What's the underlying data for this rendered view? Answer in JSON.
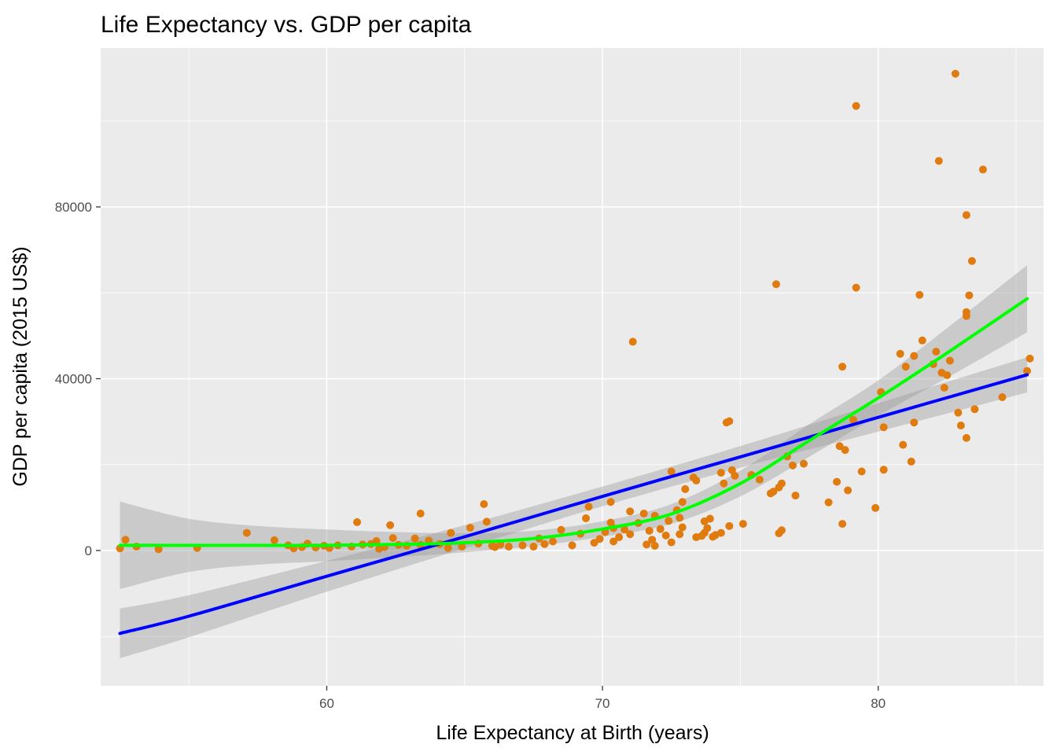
{
  "chart_data": {
    "type": "scatter",
    "title": "Life Expectancy vs. GDP per capita",
    "xlabel": "Life Expectancy at Birth (years)",
    "ylabel": "GDP per capita (2015 US$)",
    "xlim": [
      51.8,
      86.0
    ],
    "ylim": [
      -31500,
      117000
    ],
    "x_ticks": [
      60,
      70,
      80
    ],
    "y_ticks": [
      0,
      40000,
      80000
    ],
    "x_minor": [
      55,
      65,
      75,
      85
    ],
    "y_minor": [
      -20000,
      20000,
      60000,
      100000
    ],
    "grid": true,
    "legend": "none",
    "colors": {
      "panel": "#ebebeb",
      "grid": "#ffffff",
      "points": "#e07b10",
      "ribbon": "#999999",
      "linear_fit": "#0000ff",
      "smooth_fit": "#00ff00"
    },
    "series": [
      {
        "type": "points",
        "points": [
          [
            52.5,
            500
          ],
          [
            52.7,
            2500
          ],
          [
            53.1,
            900
          ],
          [
            53.9,
            300
          ],
          [
            55.3,
            600
          ],
          [
            57.1,
            4100
          ],
          [
            58.1,
            2400
          ],
          [
            58.6,
            1200
          ],
          [
            58.8,
            500
          ],
          [
            59.1,
            800
          ],
          [
            59.3,
            1600
          ],
          [
            59.6,
            700
          ],
          [
            59.9,
            1100
          ],
          [
            60.1,
            600
          ],
          [
            60.4,
            1200
          ],
          [
            60.9,
            900
          ],
          [
            61.3,
            1400
          ],
          [
            61.1,
            6600
          ],
          [
            61.6,
            1500
          ],
          [
            61.8,
            2200
          ],
          [
            61.9,
            400
          ],
          [
            62.1,
            800
          ],
          [
            62.3,
            5900
          ],
          [
            62.4,
            2900
          ],
          [
            62.6,
            1300
          ],
          [
            62.9,
            1100
          ],
          [
            63.2,
            2800
          ],
          [
            63.4,
            8600
          ],
          [
            63.4,
            1300
          ],
          [
            63.7,
            2300
          ],
          [
            64.1,
            1500
          ],
          [
            64.4,
            600
          ],
          [
            64.5,
            4100
          ],
          [
            64.9,
            900
          ],
          [
            65.2,
            5300
          ],
          [
            65.5,
            1600
          ],
          [
            65.7,
            10800
          ],
          [
            65.8,
            6700
          ],
          [
            66.0,
            1100
          ],
          [
            66.1,
            800
          ],
          [
            66.3,
            1400
          ],
          [
            66.6,
            900
          ],
          [
            67.1,
            1200
          ],
          [
            67.5,
            900
          ],
          [
            67.7,
            2800
          ],
          [
            67.9,
            1500
          ],
          [
            68.2,
            2100
          ],
          [
            68.5,
            4800
          ],
          [
            68.9,
            1200
          ],
          [
            69.2,
            3900
          ],
          [
            69.4,
            7500
          ],
          [
            69.5,
            10200
          ],
          [
            69.7,
            1800
          ],
          [
            69.9,
            2700
          ],
          [
            70.1,
            4300
          ],
          [
            70.3,
            11300
          ],
          [
            70.3,
            6500
          ],
          [
            70.4,
            2100
          ],
          [
            70.4,
            5200
          ],
          [
            70.6,
            3100
          ],
          [
            70.8,
            4900
          ],
          [
            71.0,
            3800
          ],
          [
            71.0,
            9100
          ],
          [
            71.1,
            48600
          ],
          [
            71.3,
            6400
          ],
          [
            71.5,
            8600
          ],
          [
            71.6,
            1400
          ],
          [
            71.7,
            4600
          ],
          [
            71.8,
            2500
          ],
          [
            71.9,
            1100
          ],
          [
            71.9,
            8100
          ],
          [
            72.1,
            5000
          ],
          [
            72.3,
            3500
          ],
          [
            72.4,
            6900
          ],
          [
            72.5,
            1900
          ],
          [
            72.5,
            18400
          ],
          [
            72.7,
            9400
          ],
          [
            72.8,
            7600
          ],
          [
            72.8,
            3800
          ],
          [
            72.9,
            5400
          ],
          [
            72.9,
            11300
          ],
          [
            73.0,
            14300
          ],
          [
            73.3,
            17000
          ],
          [
            73.4,
            16300
          ],
          [
            73.4,
            3100
          ],
          [
            73.6,
            3400
          ],
          [
            73.7,
            4100
          ],
          [
            73.7,
            6800
          ],
          [
            73.8,
            5200
          ],
          [
            73.9,
            7400
          ],
          [
            74.0,
            3200
          ],
          [
            74.1,
            3600
          ],
          [
            74.3,
            4100
          ],
          [
            74.3,
            18100
          ],
          [
            74.4,
            15600
          ],
          [
            74.5,
            29800
          ],
          [
            74.6,
            5700
          ],
          [
            74.6,
            30100
          ],
          [
            74.7,
            18700
          ],
          [
            74.8,
            17400
          ],
          [
            75.1,
            6200
          ],
          [
            75.4,
            17600
          ],
          [
            75.7,
            16500
          ],
          [
            76.1,
            13300
          ],
          [
            76.2,
            13700
          ],
          [
            76.3,
            62000
          ],
          [
            76.4,
            4000
          ],
          [
            76.4,
            14700
          ],
          [
            76.5,
            4700
          ],
          [
            76.5,
            15600
          ],
          [
            76.7,
            21900
          ],
          [
            76.9,
            19800
          ],
          [
            77.0,
            12800
          ],
          [
            77.3,
            20200
          ],
          [
            78.2,
            11200
          ],
          [
            78.5,
            16000
          ],
          [
            78.6,
            24300
          ],
          [
            78.7,
            42800
          ],
          [
            78.7,
            6200
          ],
          [
            78.8,
            23400
          ],
          [
            78.9,
            14000
          ],
          [
            79.1,
            30400
          ],
          [
            79.2,
            103500
          ],
          [
            79.2,
            61200
          ],
          [
            79.4,
            18400
          ],
          [
            79.9,
            9900
          ],
          [
            80.1,
            36900
          ],
          [
            80.2,
            28700
          ],
          [
            80.2,
            18800
          ],
          [
            80.8,
            45800
          ],
          [
            80.9,
            24600
          ],
          [
            81.0,
            42800
          ],
          [
            81.2,
            20700
          ],
          [
            81.3,
            29800
          ],
          [
            81.3,
            45300
          ],
          [
            81.5,
            59500
          ],
          [
            81.6,
            48900
          ],
          [
            82.0,
            43400
          ],
          [
            82.1,
            46300
          ],
          [
            82.2,
            90700
          ],
          [
            82.3,
            41400
          ],
          [
            82.4,
            37900
          ],
          [
            82.5,
            40800
          ],
          [
            82.6,
            44200
          ],
          [
            82.8,
            111000
          ],
          [
            82.9,
            32100
          ],
          [
            83.0,
            29100
          ],
          [
            83.2,
            54600
          ],
          [
            83.2,
            55500
          ],
          [
            83.2,
            26200
          ],
          [
            83.2,
            78100
          ],
          [
            83.3,
            59400
          ],
          [
            83.4,
            67400
          ],
          [
            83.5,
            32900
          ],
          [
            83.8,
            88700
          ],
          [
            84.5,
            35700
          ],
          [
            85.4,
            41800
          ],
          [
            85.5,
            44700
          ]
        ]
      },
      {
        "type": "line",
        "method": "linear fit",
        "x": [
          52.5,
          55,
          60,
          65,
          70,
          75,
          80,
          85.4
        ],
        "y": [
          -19300,
          -15300,
          -6000,
          3200,
          12600,
          21800,
          31000,
          40900
        ],
        "band_low": [
          -25100,
          -20200,
          -9600,
          500,
          10300,
          19300,
          27700,
          36800
        ],
        "band_high": [
          -13500,
          -10400,
          -2400,
          5900,
          14900,
          24300,
          34300,
          45000
        ]
      },
      {
        "type": "line",
        "method": "smoothed fit",
        "x": [
          52.5,
          55,
          57.5,
          60,
          62.5,
          65,
          67.5,
          70,
          72.5,
          75,
          77.5,
          80,
          82.5,
          85.4
        ],
        "y": [
          1200,
          1200,
          1200,
          1200,
          1400,
          1800,
          2800,
          5000,
          8500,
          15600,
          25600,
          35500,
          46000,
          58600
        ],
        "band_low": [
          -9000,
          -5000,
          -3300,
          -2500,
          -1500,
          -400,
          1000,
          3200,
          6200,
          12600,
          21800,
          31400,
          40200,
          50800
        ],
        "band_high": [
          11400,
          7400,
          5700,
          4900,
          4300,
          4000,
          4600,
          6800,
          10800,
          18600,
          29400,
          39600,
          51800,
          66400
        ]
      }
    ]
  }
}
